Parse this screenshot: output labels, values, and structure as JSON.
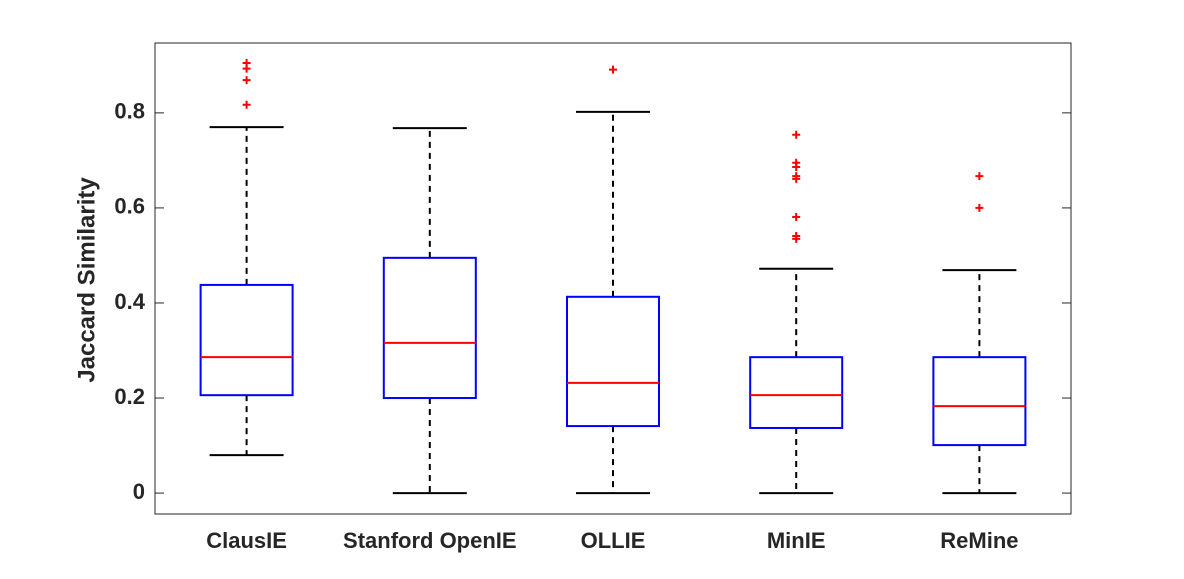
{
  "chart_data": {
    "type": "box",
    "y_label": "Jaccard Similarity",
    "categories": [
      "ClausIE",
      "Stanford OpenIE",
      "OLLIE",
      "MinIE",
      "ReMine"
    ],
    "boxes": [
      {
        "whisker_low": 0.08,
        "q1": 0.206,
        "median": 0.286,
        "q3": 0.438,
        "whisker_high": 0.77,
        "outliers": [
          0.905,
          0.893,
          0.869,
          0.817
        ]
      },
      {
        "whisker_low": 0,
        "q1": 0.2,
        "median": 0.316,
        "q3": 0.495,
        "whisker_high": 0.768,
        "outliers": []
      },
      {
        "whisker_low": 0,
        "q1": 0.141,
        "median": 0.232,
        "q3": 0.413,
        "whisker_high": 0.802,
        "outliers": [
          0.891
        ]
      },
      {
        "whisker_low": 0,
        "q1": 0.137,
        "median": 0.206,
        "q3": 0.286,
        "whisker_high": 0.472,
        "outliers": [
          0.754,
          0.695,
          0.686,
          0.667,
          0.661,
          0.581,
          0.541,
          0.535
        ]
      },
      {
        "whisker_low": 0,
        "q1": 0.101,
        "median": 0.183,
        "q3": 0.286,
        "whisker_high": 0.469,
        "outliers": [
          0.667,
          0.6
        ]
      }
    ],
    "box_color": "#0000ff",
    "median_color": "#ff0000",
    "whisker_color": "#000000",
    "outlier_color": "#ff0000",
    "ylim": [
      -0.044,
      0.947
    ],
    "yticks": [
      0,
      0.2,
      0.4,
      0.6,
      0.8
    ]
  }
}
